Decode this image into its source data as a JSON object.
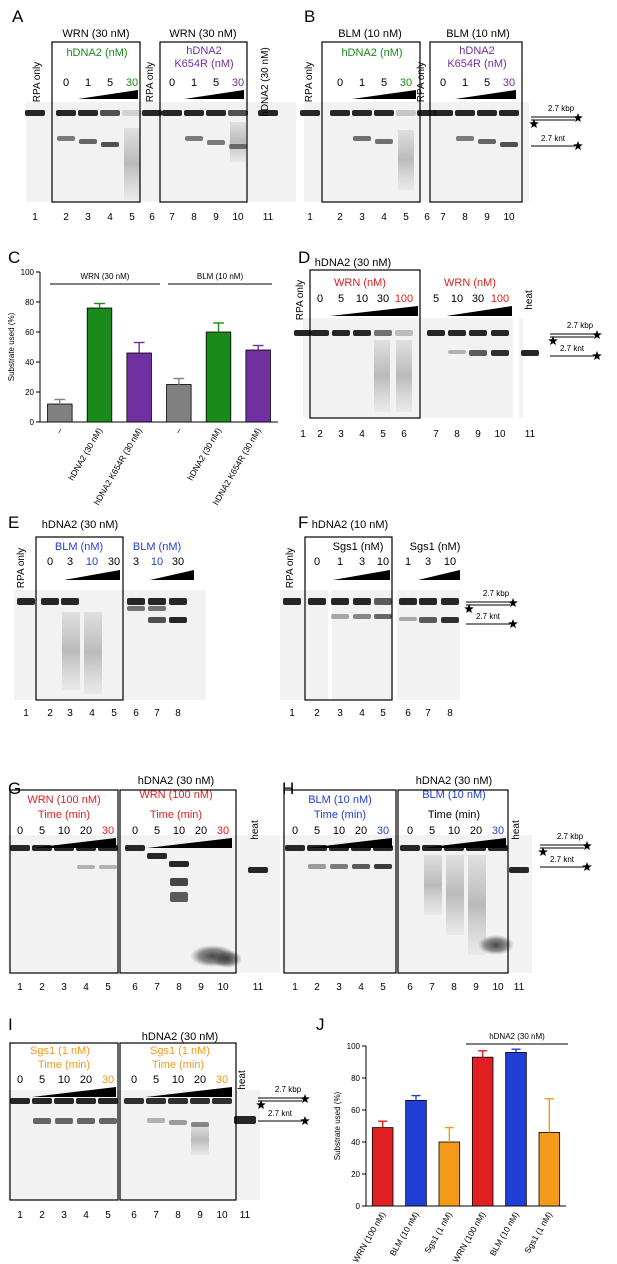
{
  "figure": {
    "panelA": {
      "letter": "A",
      "group1": "WRN (30 nM)",
      "group2": "WRN (30 nM)",
      "rpa_only": "RPA only",
      "hdna2_label": "hDNA2 (nM)",
      "k654r_line1": "hDNA2",
      "k654r_line2": "K654R (nM)",
      "conc": [
        "0",
        "1",
        "5",
        "30"
      ],
      "hdna2_only": "hDNA2 (30 nM)",
      "lanes": [
        "1",
        "2",
        "3",
        "4",
        "5",
        "6",
        "7",
        "8",
        "9",
        "10",
        "11"
      ]
    },
    "panelB": {
      "letter": "B",
      "group1": "BLM (10 nM)",
      "group2": "BLM (10 nM)",
      "rpa_only": "RPA only",
      "hdna2_label": "hDNA2 (nM)",
      "k654r_line1": "hDNA2",
      "k654r_line2": "K654R (nM)",
      "conc": [
        "0",
        "1",
        "5",
        "30"
      ],
      "lanes": [
        "1",
        "2",
        "3",
        "4",
        "5",
        "6",
        "7",
        "8",
        "9",
        "10"
      ],
      "kbp": "2.7 kbp",
      "knt": "2.7 knt"
    },
    "panelC": {
      "letter": "C"
    },
    "panelD": {
      "letter": "D",
      "header": "hDNA2 (30 nM)",
      "rpa_only": "RPA only",
      "wrn1": "WRN (nM)",
      "wrn2": "WRN (nM)",
      "conc1": [
        "0",
        "5",
        "10",
        "30",
        "100"
      ],
      "conc2": [
        "5",
        "10",
        "30",
        "100"
      ],
      "heat": "heat",
      "lanes": [
        "1",
        "2",
        "3",
        "4",
        "5",
        "6",
        "7",
        "8",
        "9",
        "10",
        "11"
      ],
      "kbp": "2.7 kbp",
      "knt": "2.7 knt"
    },
    "panelE": {
      "letter": "E",
      "header": "hDNA2 (30 nM)",
      "rpa_only": "RPA only",
      "blm1": "BLM (nM)",
      "blm2": "BLM (nM)",
      "conc1": [
        "0",
        "3",
        "10",
        "30"
      ],
      "conc2": [
        "3",
        "10",
        "30"
      ],
      "lanes": [
        "1",
        "2",
        "3",
        "4",
        "5",
        "6",
        "7",
        "8"
      ]
    },
    "panelF": {
      "letter": "F",
      "header": "hDNA2 (10 nM)",
      "rpa_only": "RPA only",
      "sgs1a": "Sgs1 (nM)",
      "sgs1b": "Sgs1 (nM)",
      "conc1": [
        "0",
        "1",
        "3",
        "10"
      ],
      "conc2": [
        "1",
        "3",
        "10"
      ],
      "lanes": [
        "1",
        "2",
        "3",
        "4",
        "5",
        "6",
        "7",
        "8"
      ],
      "kbp": "2.7 kbp",
      "knt": "2.7 knt"
    },
    "panelG": {
      "letter": "G",
      "title1": "WRN (100 nM)",
      "title2a": "hDNA2 (30 nM)",
      "title2b": "WRN (100 nM)",
      "time": "Time (min)",
      "times": [
        "0",
        "5",
        "10",
        "20",
        "30"
      ],
      "heat": "heat",
      "lanes": [
        "1",
        "2",
        "3",
        "4",
        "5",
        "6",
        "7",
        "8",
        "9",
        "10",
        "11"
      ]
    },
    "panelH": {
      "letter": "H",
      "title1": "BLM (10 nM)",
      "title2a": "hDNA2 (30 nM)",
      "title2b": "BLM (10 nM)",
      "time": "Time (min)",
      "times": [
        "0",
        "5",
        "10",
        "20",
        "30"
      ],
      "heat": "heat",
      "lanes": [
        "1",
        "2",
        "3",
        "4",
        "5",
        "6",
        "7",
        "8",
        "9",
        "10",
        "11"
      ],
      "kbp": "2.7 kbp",
      "knt": "2.7 knt"
    },
    "panelI": {
      "letter": "I",
      "title1": "Sgs1 (1 nM)",
      "title2a": "hDNA2 (30 nM)",
      "title2b": "Sgs1 (1 nM)",
      "time": "Time (min)",
      "times": [
        "0",
        "5",
        "10",
        "20",
        "30"
      ],
      "heat": "heat",
      "lanes": [
        "1",
        "2",
        "3",
        "4",
        "5",
        "6",
        "7",
        "8",
        "9",
        "10",
        "11"
      ],
      "kbp": "2.7 kbp",
      "knt": "2.7 knt"
    },
    "panelJ": {
      "letter": "J"
    }
  },
  "colors": {
    "wrn": "#e02020",
    "blm": "#1f3fd6",
    "sgs1": "#f39a1a",
    "hdna2": "#1a8a1a",
    "k654r": "#7030a0",
    "neg": "#808080"
  },
  "chart_data": [
    {
      "type": "bar",
      "panel": "C",
      "ylabel": "Substrate used (%)",
      "ylim": [
        0,
        100
      ],
      "yticks": [
        "0",
        "20",
        "40",
        "60",
        "80",
        "100"
      ],
      "groups": [
        "WRN (30 nM)",
        "BLM (10 nM)"
      ],
      "categories": [
        "–",
        "hDNA2 (30 nM)",
        "hDNA2 K654R (30 nM)",
        "–",
        "hDNA2 (30 nM)",
        "hDNA2 K654R (30 nM)"
      ],
      "values": [
        12,
        76,
        46,
        25,
        60,
        48
      ],
      "errors": [
        3,
        3,
        7,
        4,
        6,
        3
      ],
      "colors": [
        "#808080",
        "#1a8a1a",
        "#7030a0",
        "#808080",
        "#1a8a1a",
        "#7030a0"
      ]
    },
    {
      "type": "bar",
      "panel": "J",
      "ylabel": "Substrate used (%)",
      "ylim": [
        0,
        100
      ],
      "yticks": [
        "0",
        "20",
        "40",
        "60",
        "80",
        "100"
      ],
      "groups": [
        "hDNA2 (30 nM)"
      ],
      "categories": [
        "WRN (100 nM)",
        "BLM (10 nM)",
        "Sgs1 (1 nM)",
        "WRN (100 nM)",
        "BLM (10 nM)",
        "Sgs1 (1 nM)"
      ],
      "values": [
        49,
        66,
        40,
        93,
        96,
        46
      ],
      "errors": [
        4,
        3,
        9,
        4,
        2,
        21
      ],
      "colors": [
        "#e02020",
        "#1f3fd6",
        "#f39a1a",
        "#e02020",
        "#1f3fd6",
        "#f39a1a"
      ]
    }
  ]
}
